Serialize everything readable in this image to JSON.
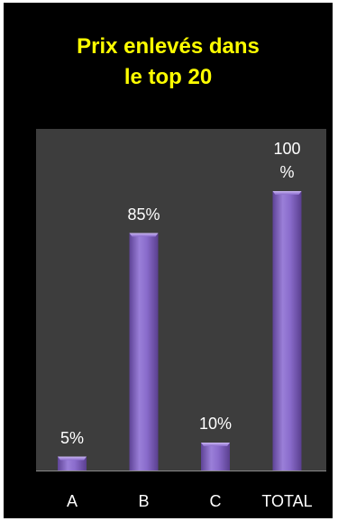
{
  "chart_data": {
    "type": "bar",
    "title_lines": [
      "Prix enlevés dans",
      "le top 20"
    ],
    "categories": [
      "A",
      "B",
      "C",
      "TOTAL"
    ],
    "values": [
      5,
      85,
      10,
      100
    ],
    "data_labels": [
      [
        "5%"
      ],
      [
        "85%"
      ],
      [
        "10%"
      ],
      [
        "100",
        "%"
      ]
    ],
    "ylim": [
      0,
      110
    ],
    "grid": false,
    "colors": {
      "background": "#000000",
      "plot_area": "#3d3d3d",
      "bar": "#8a6ccc",
      "title": "#ffff00",
      "text": "#ffffff"
    }
  }
}
